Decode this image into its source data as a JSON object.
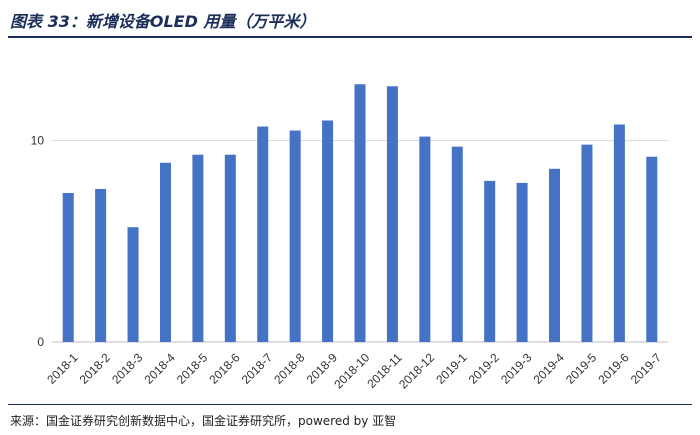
{
  "header": {
    "title": "图表 33：新增设备OLED 用量（万平米）"
  },
  "footer": {
    "source": "来源：国金证券研究创新数据中心，国金证券研究所，powered by 亚智"
  },
  "chart_data": {
    "type": "bar",
    "title": "新增设备OLED 用量（万平米）",
    "xlabel": "",
    "ylabel": "",
    "categories": [
      "2018-1",
      "2018-2",
      "2018-3",
      "2018-4",
      "2018-5",
      "2018-6",
      "2018-7",
      "2018-8",
      "2018-9",
      "2018-10",
      "2018-11",
      "2018-12",
      "2019-1",
      "2019-2",
      "2019-3",
      "2019-4",
      "2019-5",
      "2019-6",
      "2019-7"
    ],
    "values": [
      7.4,
      7.6,
      5.7,
      8.9,
      9.3,
      9.3,
      10.7,
      10.5,
      11.0,
      12.8,
      12.7,
      10.2,
      9.7,
      8.0,
      7.9,
      8.6,
      9.8,
      10.8,
      9.2
    ],
    "yticks": [
      0,
      10
    ],
    "ylim": [
      0,
      14.5
    ],
    "grid": true,
    "legend": "none",
    "color": "#4472c4"
  }
}
